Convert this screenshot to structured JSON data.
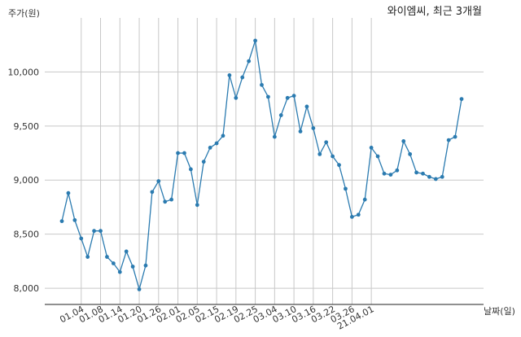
{
  "chart_data": {
    "type": "line",
    "title": "와이엠씨, 최근 3개월",
    "ylabel": "주가(원)",
    "xlabel": "날짜(일)",
    "ylim": [
      7850,
      10500
    ],
    "yticks": [
      8000,
      8500,
      9000,
      9500,
      10000
    ],
    "ytick_labels": [
      "8,000",
      "8,500",
      "9,000",
      "9,500",
      "10,000"
    ],
    "grid": true,
    "series_color": "#2b7bb0",
    "x_tick_labels": [
      "01.04",
      "01.08",
      "01.14",
      "01.20",
      "01.26",
      "02.01",
      "02.05",
      "02.15",
      "02.19",
      "02.25",
      "03.04",
      "03.10",
      "03.16",
      "03.22",
      "03.26",
      "21.04.01"
    ],
    "x_tick_index": [
      3,
      6,
      9,
      12,
      15,
      18,
      21,
      24,
      27,
      30,
      33,
      36,
      39,
      42,
      45,
      48
    ],
    "series": [
      {
        "values": [
          8620,
          8880,
          8630,
          8460,
          8290,
          8530,
          8530,
          8290,
          8230,
          8150,
          8340,
          8200,
          7990,
          8210,
          8890,
          8990,
          8800,
          8820,
          9250,
          9250,
          9100,
          8770,
          9170,
          9300,
          9340,
          9410,
          9970,
          9760,
          9950,
          10100,
          10290,
          9880,
          9770,
          9400,
          9600,
          9760,
          9780,
          9450,
          9680,
          9480,
          9240,
          9350,
          9220,
          9140,
          8920,
          8660,
          8680,
          8820,
          9300,
          9220,
          9060,
          9050,
          9090,
          9360,
          9240,
          9070,
          9060,
          9030,
          9010,
          9030,
          9370,
          9400,
          9750
        ]
      }
    ]
  }
}
